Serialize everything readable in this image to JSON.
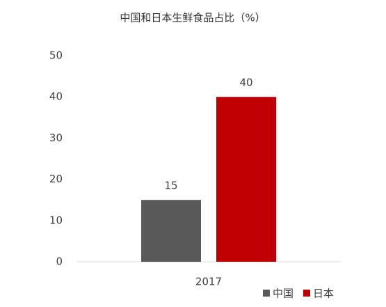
{
  "chart_data": {
    "type": "bar",
    "title": "中国和日本生鲜食品占比（%）",
    "categories": [
      "2017"
    ],
    "series": [
      {
        "name": "中国",
        "color": "#595959",
        "values": [
          15
        ]
      },
      {
        "name": "日本",
        "color": "#c00000",
        "values": [
          40
        ]
      }
    ],
    "ylim": [
      0,
      50
    ],
    "yticks": [
      0,
      10,
      20,
      30,
      40,
      50
    ],
    "grid": false,
    "legend": "bottom-right"
  }
}
